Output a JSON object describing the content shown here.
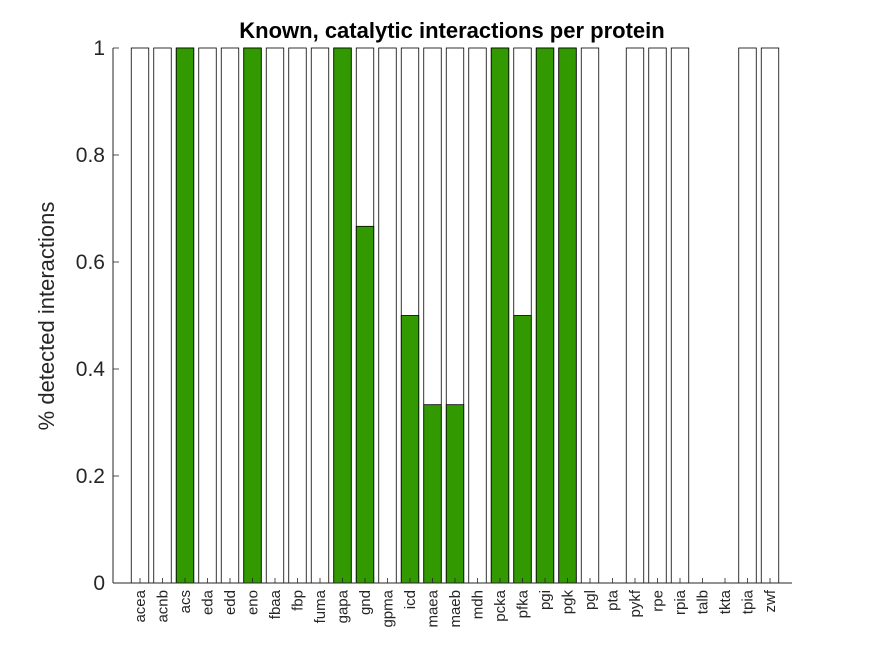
{
  "chart_data": {
    "type": "bar",
    "title": "Known, catalytic interactions per protein",
    "ylabel": "% detected interactions",
    "xlabel": "",
    "ylim": [
      0,
      1
    ],
    "yticks": [
      "0",
      "0.2",
      "0.4",
      "0.6",
      "0.8",
      "1"
    ],
    "grid": false,
    "categories": [
      "acea",
      "acnb",
      "acs",
      "eda",
      "edd",
      "eno",
      "fbaa",
      "fbp",
      "fuma",
      "gapa",
      "gnd",
      "gpma",
      "icd",
      "maea",
      "maeb",
      "mdh",
      "pcka",
      "pfka",
      "pgi",
      "pgk",
      "pgl",
      "pta",
      "pykf",
      "rpe",
      "rpia",
      "talb",
      "tkta",
      "tpia",
      "zwf"
    ],
    "series": [
      {
        "role": "total",
        "color": "#ffffff",
        "values": [
          1,
          1,
          1,
          1,
          1,
          1,
          1,
          1,
          1,
          1,
          1,
          1,
          1,
          1,
          1,
          1,
          1,
          1,
          1,
          1,
          1,
          0,
          1,
          1,
          1,
          0,
          0,
          1,
          1
        ]
      },
      {
        "role": "detected",
        "color": "#339900",
        "values": [
          0,
          0,
          1,
          0,
          0,
          1,
          0,
          0,
          0,
          1,
          0.6667,
          0,
          0.5,
          0.3333,
          0.3333,
          0,
          1,
          0.5,
          1,
          1,
          0,
          0,
          0,
          0,
          0,
          0,
          0,
          0,
          0
        ]
      }
    ]
  }
}
